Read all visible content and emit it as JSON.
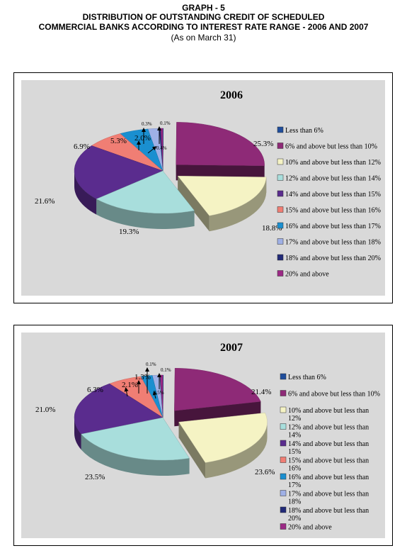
{
  "header": {
    "graph_label": "GRAPH - 5",
    "title_line1": "DISTRIBUTION OF OUTSTANDING CREDIT OF SCHEDULED",
    "title_line2": "COMMERCIAL BANKS ACCORDING TO INTEREST RATE RANGE - 2006 AND 2007",
    "subtitle": "(As on March 31)"
  },
  "chart_data": [
    {
      "type": "pie",
      "title": "2006",
      "categories": [
        "Less than 6%",
        "6% and above but less than 10%",
        "10% and above but less than 12%",
        "12% and above but less than 14%",
        "14% and above but less than 15%",
        "15% and above but less than 16%",
        "16% and above but less than 17%",
        "17% and above but less than 18%",
        "18% and above but less than 20%",
        "20% and above"
      ],
      "values": [
        0.1,
        25.3,
        18.8,
        19.3,
        21.6,
        6.9,
        5.3,
        2.0,
        0.3,
        0.4
      ],
      "data_labels": [
        "0.1%",
        "25.3%",
        "18.8%",
        "19.3%",
        "21.6%",
        "6.9%",
        "5.3%",
        "2.0%",
        "0.3%",
        "0.4%"
      ],
      "colors": [
        "#1f4e9c",
        "#8e2a77",
        "#f5f3c4",
        "#a8dedc",
        "#5a2c8e",
        "#f07e74",
        "#1a8fd0",
        "#9fb0e6",
        "#222a78",
        "#9c2a86"
      ],
      "exploded": [
        "6% and above but less than 10%",
        "10% and above but less than 12%"
      ],
      "legend_position": "right"
    },
    {
      "type": "pie",
      "title": "2007",
      "categories": [
        "Less than 6%",
        "6% and above but less than 10%",
        "10% and above but less than 12%",
        "12% and above but less than 14%",
        "14% and above but less than 15%",
        "15% and above but less than 16%",
        "16% and above but less than 17%",
        "17% and above but less than 18%",
        "18% and above but less than 20%",
        "20% and above"
      ],
      "legend_lines": [
        [
          "Less than 6%"
        ],
        [
          "6% and above but less than 10%"
        ],
        [
          "10% and above but less than",
          "12%"
        ],
        [
          "12% and above but less than",
          "14%"
        ],
        [
          "14% and above but less than",
          "15%"
        ],
        [
          "15% and above but less than",
          "16%"
        ],
        [
          "16% and above but less than",
          "17%"
        ],
        [
          "17% and above but less than",
          "18%"
        ],
        [
          "18% and above but less than",
          "20%"
        ],
        [
          "20% and above"
        ]
      ],
      "values": [
        0.1,
        21.4,
        23.6,
        23.5,
        21.0,
        6.3,
        2.1,
        1.3,
        0.1,
        0.5
      ],
      "data_labels": [
        "0.1%",
        "21.4%",
        "23.6%",
        "23.5%",
        "21.0%",
        "6.3%",
        "2.1%",
        "1.3%",
        "0.1%",
        "0.5%"
      ],
      "colors": [
        "#1f4e9c",
        "#8e2a77",
        "#f5f3c4",
        "#a8dedc",
        "#5a2c8e",
        "#f07e74",
        "#1a8fd0",
        "#9fb0e6",
        "#222a78",
        "#9c2a86"
      ],
      "exploded": [
        "6% and above but less than 10%",
        "10% and above but less than 12%"
      ],
      "legend_position": "right"
    }
  ]
}
